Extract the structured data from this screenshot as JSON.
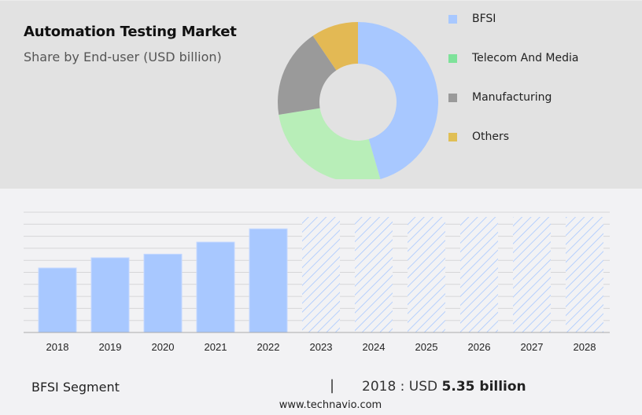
{
  "header": {
    "title": "Automation Testing Market",
    "subtitle": "Share by End-user (USD billion)"
  },
  "legend": [
    {
      "label": "BFSI",
      "color": "#a8c8ff"
    },
    {
      "label": "Telecom And Media",
      "color": "#7ee29a"
    },
    {
      "label": "Manufacturing",
      "color": "#9a9a9a"
    },
    {
      "label": "Others",
      "color": "#e0bf55"
    }
  ],
  "footer": {
    "segment": "BFSI Segment",
    "separator": "|",
    "year_prefix": "2018 : USD",
    "value": "5.35 billion",
    "url": "www.technavio.com"
  },
  "chart_data": [
    {
      "type": "pie",
      "title": "Automation Testing Market - Share by End-user (USD billion)",
      "donut": true,
      "categories": [
        "BFSI",
        "Telecom And Media",
        "Manufacturing",
        "Others"
      ],
      "values": [
        45.5,
        27,
        18,
        9.5
      ],
      "colors": [
        "#a8c8ff",
        "#b8eeb8",
        "#9a9a9a",
        "#e3b954"
      ],
      "legend_position": "right"
    },
    {
      "type": "bar",
      "title": "BFSI Segment",
      "categories": [
        "2018",
        "2019",
        "2020",
        "2021",
        "2022",
        "2023",
        "2024",
        "2025",
        "2026",
        "2027",
        "2028"
      ],
      "values": [
        5.35,
        6.2,
        6.5,
        7.5,
        8.6,
        null,
        null,
        null,
        null,
        null,
        null
      ],
      "forecast_years": [
        "2023",
        "2024",
        "2025",
        "2026",
        "2027",
        "2028"
      ],
      "forecast_style": "hatched, full height, no values shown",
      "annotation": "2018 : USD 5.35 billion",
      "grid": true,
      "xlabel": "",
      "ylabel": "",
      "bar_color": "#a8c8ff"
    }
  ]
}
